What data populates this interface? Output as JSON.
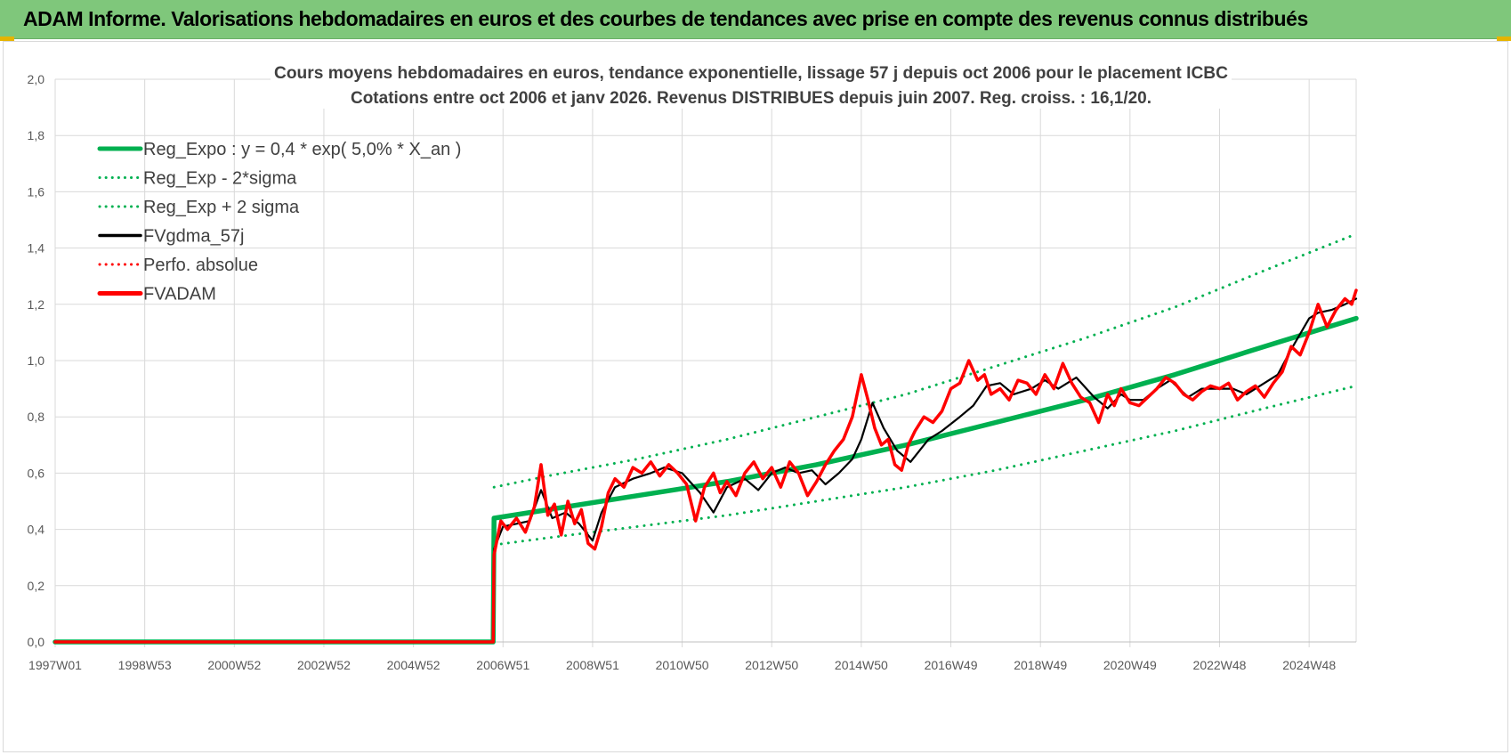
{
  "header": {
    "title": "ADAM Informe. Valorisations hebdomadaires en euros et des courbes de tendances avec prise en compte des revenus connus distribués"
  },
  "colors": {
    "banner": "#7fc77b",
    "trend": "#00b050",
    "fv": "#000000",
    "perf": "#ff0000",
    "adam": "#ff0000",
    "grid": "#d9d9d9"
  },
  "chart_data": {
    "type": "line",
    "title": [
      "Cours moyens hebdomadaires en euros, tendance exponentielle, lissage 57 j depuis oct 2006 pour le placement ICBC",
      "Cotations entre oct 2006 et janv 2026. Revenus DISTRIBUES depuis juin 2007. Reg. croiss. : 16,1/20."
    ],
    "xlabel": "",
    "ylabel": "",
    "ylim": [
      0,
      2.0
    ],
    "ytick_step": 0.2,
    "yticks": [
      "0,0",
      "0,2",
      "0,4",
      "0,6",
      "0,8",
      "1,0",
      "1,2",
      "1,4",
      "1,6",
      "1,8",
      "2,0"
    ],
    "xlim": [
      1997.0,
      2026.05
    ],
    "xticks": [
      {
        "label": "1997W01",
        "year": 1997.0
      },
      {
        "label": "1998W53",
        "year": 1999.0
      },
      {
        "label": "2000W52",
        "year": 2001.0
      },
      {
        "label": "2002W52",
        "year": 2003.0
      },
      {
        "label": "2004W52",
        "year": 2005.0
      },
      {
        "label": "2006W51",
        "year": 2007.0
      },
      {
        "label": "2008W51",
        "year": 2009.0
      },
      {
        "label": "2010W50",
        "year": 2011.0
      },
      {
        "label": "2012W50",
        "year": 2013.0
      },
      {
        "label": "2014W50",
        "year": 2015.0
      },
      {
        "label": "2016W49",
        "year": 2017.0
      },
      {
        "label": "2018W49",
        "year": 2019.0
      },
      {
        "label": "2020W49",
        "year": 2021.0
      },
      {
        "label": "2022W48",
        "year": 2023.0
      },
      {
        "label": "2024W48",
        "year": 2025.0
      }
    ],
    "grid": true,
    "legend": "top-left",
    "series": [
      {
        "name": "Reg_Expo : y = 0,4 * exp( 5,0% *  X_an )",
        "style": "solid-thick",
        "color": "#00b050",
        "x": [
          1997.0,
          2006.78,
          2006.8,
          2008.0,
          2010.0,
          2012.0,
          2014.0,
          2016.0,
          2018.0,
          2020.0,
          2022.0,
          2024.0,
          2026.05
        ],
        "y": [
          0,
          0,
          0.44,
          0.47,
          0.52,
          0.57,
          0.63,
          0.7,
          0.78,
          0.86,
          0.95,
          1.05,
          1.15
        ]
      },
      {
        "name": "Reg_Exp - 2*sigma",
        "style": "dotted",
        "color": "#00b050",
        "x": [
          2006.8,
          2008.0,
          2010.0,
          2012.0,
          2014.0,
          2016.0,
          2018.0,
          2020.0,
          2022.0,
          2024.0,
          2026.05
        ],
        "y": [
          0.345,
          0.37,
          0.41,
          0.45,
          0.5,
          0.55,
          0.61,
          0.68,
          0.75,
          0.83,
          0.91
        ]
      },
      {
        "name": "Reg_Exp + 2 sigma",
        "style": "dotted",
        "color": "#00b050",
        "x": [
          2006.8,
          2008.0,
          2010.0,
          2012.0,
          2014.0,
          2016.0,
          2018.0,
          2020.0,
          2022.0,
          2024.0,
          2026.05
        ],
        "y": [
          0.55,
          0.59,
          0.65,
          0.72,
          0.8,
          0.88,
          0.98,
          1.08,
          1.19,
          1.32,
          1.45
        ]
      },
      {
        "name": "FVgdma_57j",
        "style": "solid",
        "color": "#000000",
        "x": [
          1997.0,
          2006.78,
          2006.8,
          2007.0,
          2007.3,
          2007.6,
          2007.85,
          2008.1,
          2008.4,
          2008.7,
          2009.0,
          2009.2,
          2009.5,
          2009.9,
          2010.3,
          2010.6,
          2011.0,
          2011.4,
          2011.7,
          2012.0,
          2012.4,
          2012.7,
          2013.0,
          2013.3,
          2013.6,
          2013.9,
          2014.2,
          2014.5,
          2014.8,
          2015.0,
          2015.25,
          2015.5,
          2015.8,
          2016.1,
          2016.5,
          2016.8,
          2017.2,
          2017.5,
          2017.8,
          2018.1,
          2018.4,
          2018.8,
          2019.1,
          2019.4,
          2019.8,
          2020.2,
          2020.5,
          2020.8,
          2021.0,
          2021.3,
          2021.6,
          2021.9,
          2022.3,
          2022.6,
          2023.0,
          2023.3,
          2023.6,
          2024.0,
          2024.3,
          2024.6,
          2025.0,
          2025.2,
          2025.5,
          2025.8,
          2026.05
        ],
        "y": [
          0,
          0,
          0.33,
          0.41,
          0.42,
          0.43,
          0.54,
          0.44,
          0.46,
          0.42,
          0.36,
          0.46,
          0.55,
          0.58,
          0.6,
          0.62,
          0.6,
          0.53,
          0.46,
          0.55,
          0.58,
          0.54,
          0.6,
          0.62,
          0.6,
          0.61,
          0.56,
          0.6,
          0.65,
          0.72,
          0.85,
          0.76,
          0.68,
          0.64,
          0.72,
          0.75,
          0.8,
          0.84,
          0.91,
          0.92,
          0.88,
          0.9,
          0.93,
          0.9,
          0.94,
          0.87,
          0.83,
          0.88,
          0.86,
          0.86,
          0.9,
          0.93,
          0.87,
          0.9,
          0.9,
          0.9,
          0.88,
          0.92,
          0.95,
          1.04,
          1.15,
          1.17,
          1.18,
          1.2,
          1.22
        ]
      },
      {
        "name": "Perfo. absolue",
        "style": "dotted",
        "color": "#ff0000",
        "x": [],
        "y": []
      },
      {
        "name": "FVADAM",
        "style": "solid-thick",
        "color": "#ff0000",
        "x": [
          1997.0,
          2006.78,
          2006.8,
          2006.95,
          2007.1,
          2007.3,
          2007.5,
          2007.7,
          2007.85,
          2008.0,
          2008.15,
          2008.3,
          2008.45,
          2008.6,
          2008.75,
          2008.9,
          2009.05,
          2009.2,
          2009.35,
          2009.5,
          2009.7,
          2009.9,
          2010.1,
          2010.3,
          2010.5,
          2010.7,
          2010.9,
          2011.1,
          2011.3,
          2011.5,
          2011.7,
          2011.85,
          2012.0,
          2012.2,
          2012.4,
          2012.6,
          2012.8,
          2013.0,
          2013.2,
          2013.4,
          2013.6,
          2013.8,
          2014.0,
          2014.2,
          2014.4,
          2014.6,
          2014.8,
          2015.0,
          2015.15,
          2015.3,
          2015.45,
          2015.6,
          2015.75,
          2015.9,
          2016.05,
          2016.2,
          2016.4,
          2016.6,
          2016.8,
          2017.0,
          2017.2,
          2017.4,
          2017.6,
          2017.75,
          2017.9,
          2018.1,
          2018.3,
          2018.5,
          2018.7,
          2018.9,
          2019.1,
          2019.3,
          2019.5,
          2019.7,
          2019.9,
          2020.1,
          2020.3,
          2020.5,
          2020.65,
          2020.8,
          2021.0,
          2021.2,
          2021.4,
          2021.6,
          2021.8,
          2022.0,
          2022.2,
          2022.4,
          2022.6,
          2022.8,
          2023.0,
          2023.2,
          2023.4,
          2023.6,
          2023.8,
          2024.0,
          2024.2,
          2024.4,
          2024.6,
          2024.8,
          2025.0,
          2025.2,
          2025.4,
          2025.6,
          2025.8,
          2025.95,
          2026.05
        ],
        "y": [
          0,
          0,
          0.31,
          0.43,
          0.4,
          0.44,
          0.39,
          0.48,
          0.63,
          0.45,
          0.49,
          0.38,
          0.5,
          0.42,
          0.47,
          0.35,
          0.33,
          0.41,
          0.53,
          0.58,
          0.55,
          0.62,
          0.6,
          0.64,
          0.59,
          0.63,
          0.6,
          0.56,
          0.43,
          0.55,
          0.6,
          0.53,
          0.57,
          0.52,
          0.6,
          0.64,
          0.58,
          0.62,
          0.55,
          0.64,
          0.6,
          0.52,
          0.57,
          0.63,
          0.68,
          0.72,
          0.8,
          0.95,
          0.86,
          0.76,
          0.7,
          0.72,
          0.63,
          0.61,
          0.7,
          0.75,
          0.8,
          0.78,
          0.82,
          0.9,
          0.92,
          1.0,
          0.93,
          0.95,
          0.88,
          0.9,
          0.86,
          0.93,
          0.92,
          0.88,
          0.95,
          0.9,
          0.99,
          0.92,
          0.87,
          0.85,
          0.78,
          0.88,
          0.84,
          0.9,
          0.85,
          0.84,
          0.87,
          0.9,
          0.94,
          0.92,
          0.88,
          0.86,
          0.89,
          0.91,
          0.9,
          0.92,
          0.86,
          0.89,
          0.91,
          0.87,
          0.92,
          0.96,
          1.05,
          1.02,
          1.1,
          1.2,
          1.12,
          1.18,
          1.22,
          1.2,
          1.25
        ]
      }
    ]
  }
}
